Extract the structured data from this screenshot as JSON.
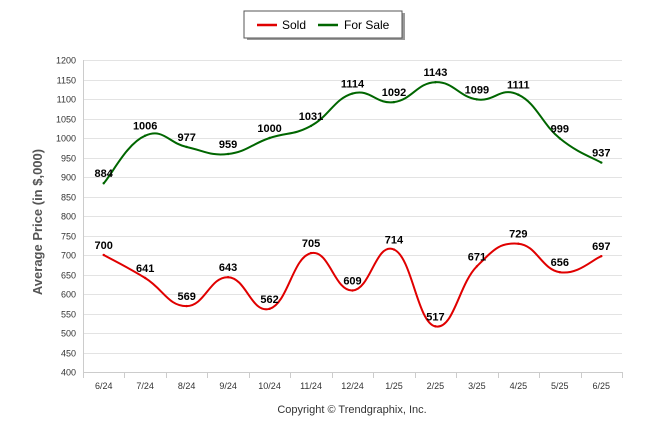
{
  "chart_data": {
    "type": "line",
    "categories": [
      "6/24",
      "7/24",
      "8/24",
      "9/24",
      "10/24",
      "11/24",
      "12/24",
      "1/25",
      "2/25",
      "3/25",
      "4/25",
      "5/25",
      "6/25"
    ],
    "series": [
      {
        "name": "Sold",
        "color": "#e00000",
        "values": [
          700,
          641,
          569,
          643,
          562,
          705,
          609,
          714,
          517,
          671,
          729,
          656,
          697
        ]
      },
      {
        "name": "For Sale",
        "color": "#006600",
        "values": [
          884,
          1006,
          977,
          959,
          1000,
          1031,
          1114,
          1092,
          1143,
          1099,
          1111,
          999,
          937
        ]
      }
    ],
    "ylabel": "Average Price (in $,000)",
    "ylim": [
      400,
      1200
    ],
    "yticks": [
      400,
      450,
      500,
      550,
      600,
      650,
      700,
      750,
      800,
      850,
      900,
      950,
      1000,
      1050,
      1100,
      1150,
      1200
    ],
    "grid": true,
    "legend_position": "top-center",
    "footer": "Copyright © Trendgraphix, Inc."
  }
}
